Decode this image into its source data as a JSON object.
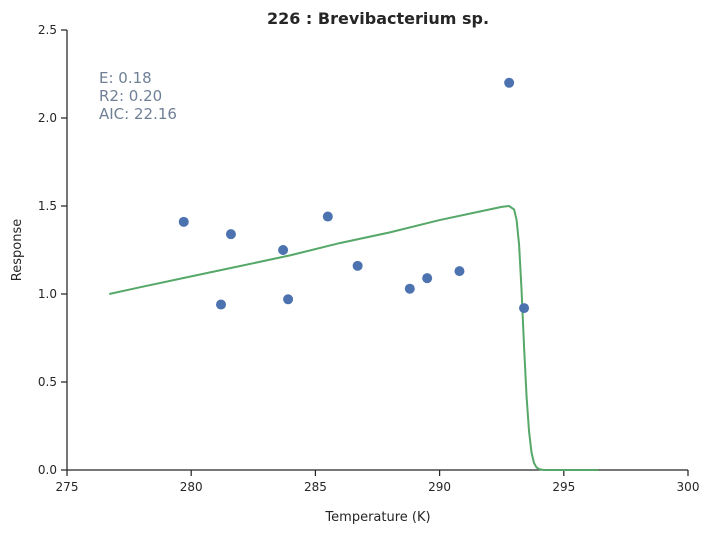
{
  "chart_data": {
    "type": "scatter",
    "title": "226 : Brevibacterium sp.",
    "xlabel": "Temperature (K)",
    "ylabel": "Response",
    "xlim": [
      275,
      300
    ],
    "ylim": [
      0,
      2.5
    ],
    "xticks": [
      275,
      280,
      285,
      290,
      295,
      300
    ],
    "yticks": [
      0.0,
      0.5,
      1.0,
      1.5,
      2.0,
      2.5
    ],
    "xtick_labels": [
      "275",
      "280",
      "285",
      "290",
      "295",
      "300"
    ],
    "ytick_labels": [
      "0.0",
      "0.5",
      "1.0",
      "1.5",
      "2.0",
      "2.5"
    ],
    "grid": false,
    "colors": {
      "points": "#4c72b0",
      "fit": "#55a868",
      "stats_text": "#6f7f96"
    },
    "series": [
      {
        "type": "scatter",
        "x": [
          279.7,
          281.2,
          281.6,
          283.7,
          283.9,
          285.5,
          286.7,
          288.8,
          289.5,
          290.8,
          292.8,
          293.4
        ],
        "y": [
          1.41,
          0.94,
          1.34,
          1.25,
          0.97,
          1.44,
          1.16,
          1.03,
          1.09,
          1.13,
          2.2,
          0.92
        ]
      },
      {
        "type": "line",
        "x": [
          276.7,
          278.0,
          280.0,
          282.0,
          284.0,
          286.0,
          288.0,
          290.0,
          292.0,
          292.5,
          292.8,
          293.0,
          293.1,
          293.2,
          293.3,
          293.4,
          293.5,
          293.6,
          293.7,
          293.8,
          293.9,
          294.0,
          294.2,
          294.5,
          295.0,
          296.4
        ],
        "y": [
          1.0,
          1.04,
          1.1,
          1.16,
          1.22,
          1.29,
          1.35,
          1.42,
          1.48,
          1.495,
          1.5,
          1.48,
          1.42,
          1.28,
          1.02,
          0.7,
          0.42,
          0.22,
          0.1,
          0.04,
          0.015,
          0.005,
          0.0,
          0.0,
          0.0,
          0.0
        ]
      }
    ],
    "annotations": [
      "E:  0.18",
      "R2:  0.20",
      "AIC: 22.16"
    ]
  }
}
